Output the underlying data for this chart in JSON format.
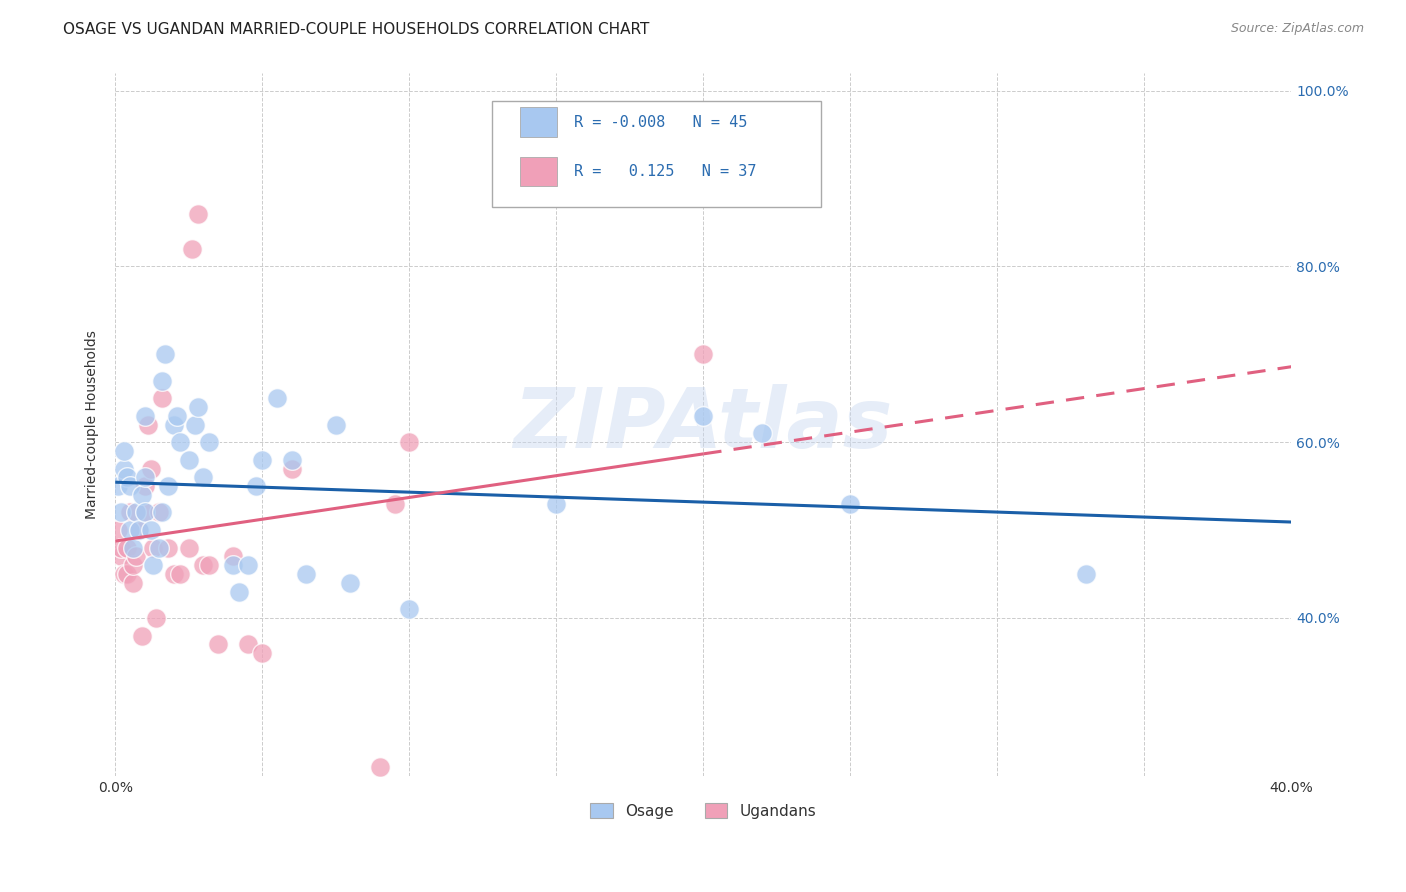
{
  "title": "OSAGE VS UGANDAN MARRIED-COUPLE HOUSEHOLDS CORRELATION CHART",
  "source": "Source: ZipAtlas.com",
  "ylabel": "Married-couple Households",
  "watermark": "ZIPAtlas",
  "x_min": 0.0,
  "x_max": 0.4,
  "y_min": 0.22,
  "y_max": 1.02,
  "osage_color": "#a8c8f0",
  "ugandan_color": "#f0a0b8",
  "osage_line_color": "#1a5fa8",
  "ugandan_line_color": "#e06080",
  "osage_R": -0.008,
  "osage_N": 45,
  "ugandan_R": 0.125,
  "ugandan_N": 37,
  "legend_label_osage": "Osage",
  "legend_label_ugandan": "Ugandans",
  "osage_x": [
    0.001,
    0.002,
    0.003,
    0.003,
    0.004,
    0.005,
    0.005,
    0.006,
    0.007,
    0.008,
    0.009,
    0.01,
    0.01,
    0.01,
    0.012,
    0.013,
    0.015,
    0.016,
    0.016,
    0.017,
    0.018,
    0.02,
    0.021,
    0.022,
    0.025,
    0.027,
    0.028,
    0.03,
    0.032,
    0.04,
    0.042,
    0.045,
    0.048,
    0.05,
    0.055,
    0.06,
    0.065,
    0.075,
    0.08,
    0.1,
    0.15,
    0.2,
    0.22,
    0.25,
    0.33
  ],
  "osage_y": [
    0.55,
    0.52,
    0.57,
    0.59,
    0.56,
    0.5,
    0.55,
    0.48,
    0.52,
    0.5,
    0.54,
    0.56,
    0.52,
    0.63,
    0.5,
    0.46,
    0.48,
    0.52,
    0.67,
    0.7,
    0.55,
    0.62,
    0.63,
    0.6,
    0.58,
    0.62,
    0.64,
    0.56,
    0.6,
    0.46,
    0.43,
    0.46,
    0.55,
    0.58,
    0.65,
    0.58,
    0.45,
    0.62,
    0.44,
    0.41,
    0.53,
    0.63,
    0.61,
    0.53,
    0.45
  ],
  "ugandan_x": [
    0.001,
    0.002,
    0.002,
    0.003,
    0.004,
    0.004,
    0.005,
    0.006,
    0.006,
    0.007,
    0.008,
    0.009,
    0.01,
    0.01,
    0.011,
    0.012,
    0.013,
    0.014,
    0.015,
    0.016,
    0.018,
    0.02,
    0.022,
    0.025,
    0.026,
    0.028,
    0.03,
    0.032,
    0.035,
    0.04,
    0.045,
    0.05,
    0.06,
    0.09,
    0.095,
    0.1,
    0.2
  ],
  "ugandan_y": [
    0.5,
    0.47,
    0.48,
    0.45,
    0.48,
    0.45,
    0.52,
    0.44,
    0.46,
    0.47,
    0.5,
    0.38,
    0.55,
    0.52,
    0.62,
    0.57,
    0.48,
    0.4,
    0.52,
    0.65,
    0.48,
    0.45,
    0.45,
    0.48,
    0.82,
    0.86,
    0.46,
    0.46,
    0.37,
    0.47,
    0.37,
    0.36,
    0.57,
    0.23,
    0.53,
    0.6,
    0.7
  ],
  "grid_color": "#cccccc",
  "background_color": "#ffffff",
  "title_fontsize": 11,
  "axis_label_fontsize": 10,
  "tick_fontsize": 10,
  "source_fontsize": 9
}
